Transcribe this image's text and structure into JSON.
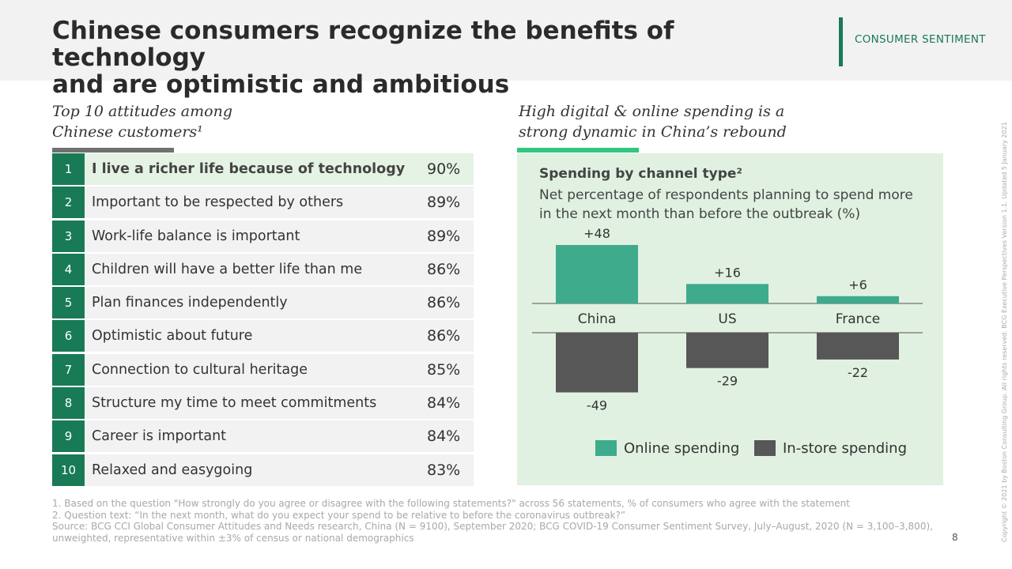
{
  "header": {
    "title_line1": "Chinese consumers recognize the benefits of technology",
    "title_line2": "and are optimistic and ambitious",
    "tag": "CONSUMER SENTIMENT"
  },
  "left": {
    "section_title_line1": "Top 10 attitudes among",
    "section_title_line2": "Chinese customers¹",
    "rows": [
      {
        "rank": "1",
        "label": "I live a richer life because of technology",
        "pct": "90%"
      },
      {
        "rank": "2",
        "label": "Important to be respected by others",
        "pct": "89%"
      },
      {
        "rank": "3",
        "label": "Work-life balance is important",
        "pct": "89%"
      },
      {
        "rank": "4",
        "label": "Children will have a better life than me",
        "pct": "86%"
      },
      {
        "rank": "5",
        "label": "Plan finances independently",
        "pct": "86%"
      },
      {
        "rank": "6",
        "label": "Optimistic about future",
        "pct": "86%"
      },
      {
        "rank": "7",
        "label": "Connection to cultural heritage",
        "pct": "85%"
      },
      {
        "rank": "8",
        "label": "Structure my time to meet commitments",
        "pct": "84%"
      },
      {
        "rank": "9",
        "label": "Career is important",
        "pct": "84%"
      },
      {
        "rank": "10",
        "label": "Relaxed and easygoing",
        "pct": "83%"
      }
    ]
  },
  "right": {
    "section_title_line1": "High digital & online spending is a",
    "section_title_line2": "strong dynamic in China’s rebound"
  },
  "chart_data": {
    "type": "bar",
    "title": "Spending by channel type²",
    "subtitle": "Net percentage of respondents planning to spend more in the next month than before the outbreak (%)",
    "categories": [
      "China",
      "US",
      "France"
    ],
    "series": [
      {
        "name": "Online spending",
        "values": [
          48,
          16,
          6
        ],
        "labels": [
          "+48",
          "+16",
          "+6"
        ],
        "color": "#3eab8c"
      },
      {
        "name": "In-store spending",
        "values": [
          -49,
          -29,
          -22
        ],
        "labels": [
          "-49",
          "-29",
          "-22"
        ],
        "color": "#575757"
      }
    ],
    "ylim": [
      -49,
      48
    ],
    "legend": "bottom"
  },
  "footnotes": {
    "line1": "1. Based on the question \"How strongly do you agree or disagree with the following statements?\" across 56 statements, % of consumers who agree with the statement",
    "line2": "2. Question text: “In the next month, what do you expect your spend to be relative to before the coronavirus outbreak?”",
    "line3": "Source: BCG CCI Global Consumer Attitudes and Needs research, China (N = 9100), September 2020; BCG COVID-19 Consumer Sentiment Survey, July–August, 2020 (N = 3,100–3,800),",
    "line4": "unweighted, representative within ±3% of census or national demographics"
  },
  "page_number": "8",
  "copyright": "Copyright © 2021 by Boston Consulting Group. All rights reserved. BCG Executive Perspectives Version 1.1. Updated 5 January 2021",
  "colors": {
    "accent": "#197a56",
    "online": "#3eab8c",
    "instore": "#575757",
    "panel": "#e0f1e1"
  }
}
